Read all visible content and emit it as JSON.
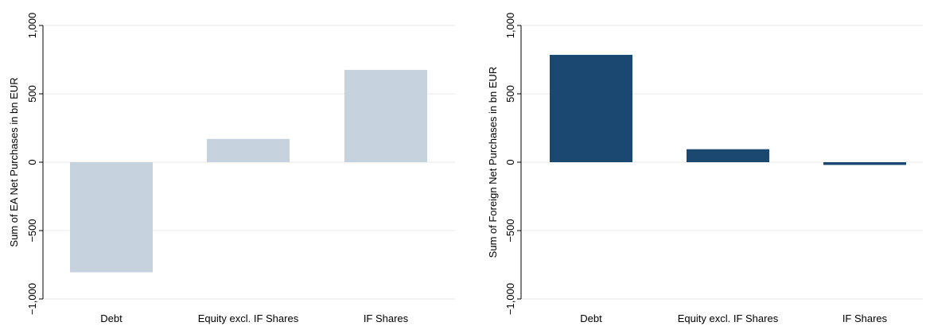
{
  "chart_data": [
    {
      "type": "bar",
      "categories": [
        "Debt",
        "Equity excl. IF Shares",
        "IF Shares"
      ],
      "values": [
        -805,
        170,
        675
      ],
      "ylabel": "Sum of EA Net Purchases in bn EUR",
      "xlabel": "",
      "ylim": [
        -1000,
        1000
      ],
      "yticks": [
        -1000,
        -500,
        0,
        500,
        1000
      ],
      "ytick_labels": [
        "−1,000",
        "−500",
        "0",
        "500",
        "1,000"
      ],
      "bar_color": "#c6d3df",
      "grid": true
    },
    {
      "type": "bar",
      "categories": [
        "Debt",
        "Equity excl. IF Shares",
        "IF Shares"
      ],
      "values": [
        785,
        95,
        -20
      ],
      "ylabel": "Sum of Foreign Net Purchases in bn EUR",
      "xlabel": "",
      "ylim": [
        -1000,
        1000
      ],
      "yticks": [
        -1000,
        -500,
        0,
        500,
        1000
      ],
      "ytick_labels": [
        "−1,000",
        "−500",
        "0",
        "500",
        "1,000"
      ],
      "bar_color": "#1b4870",
      "grid": true
    }
  ]
}
